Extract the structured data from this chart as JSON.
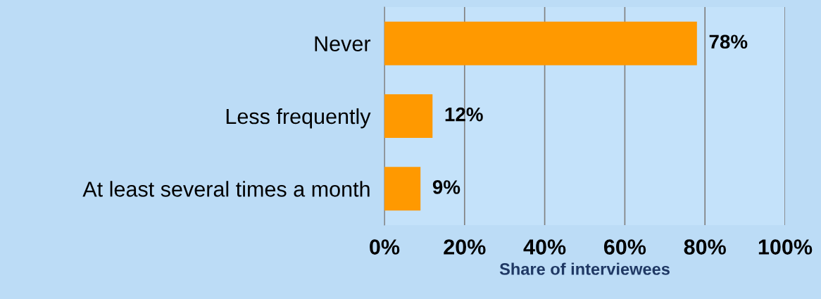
{
  "chart_data": {
    "type": "bar",
    "orientation": "horizontal",
    "xlabel": "Share of interviewees",
    "categories": [
      "Never",
      "Less frequently",
      "At least several times a month"
    ],
    "values": [
      78,
      12,
      9
    ],
    "color": "#ff9900",
    "value_labels": [
      "78%",
      "12%",
      "9%"
    ],
    "xlim": [
      0,
      100
    ],
    "xticks": [
      {
        "value": 0,
        "label": "0%"
      },
      {
        "value": 20,
        "label": "20%"
      },
      {
        "value": 40,
        "label": "40%"
      },
      {
        "value": 60,
        "label": "60%"
      },
      {
        "value": 80,
        "label": "80%"
      },
      {
        "value": 100,
        "label": "100%"
      }
    ],
    "grid": "x"
  }
}
